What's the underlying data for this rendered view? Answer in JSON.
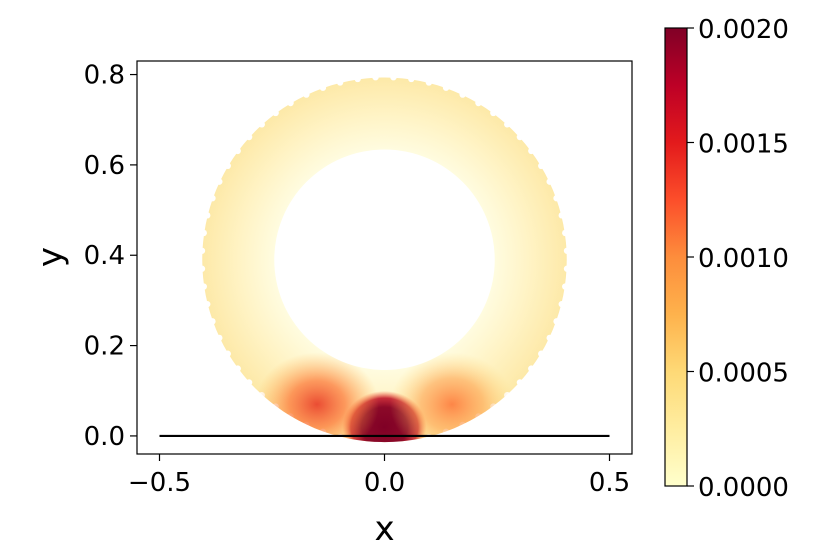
{
  "chart_data": {
    "type": "heatmap",
    "title": "",
    "xlabel": "x",
    "ylabel": "y",
    "xlim": [
      -0.55,
      0.55
    ],
    "ylim": [
      -0.04,
      0.83
    ],
    "x_ticks": [
      -0.5,
      0.0,
      0.5
    ],
    "x_tick_labels": [
      "−0.5",
      "0.0",
      "0.5"
    ],
    "y_ticks": [
      0.0,
      0.2,
      0.4,
      0.6,
      0.8
    ],
    "y_tick_labels": [
      "0.0",
      "0.2",
      "0.4",
      "0.6",
      "0.8"
    ],
    "grid": false,
    "ring": {
      "center": [
        0.0,
        0.39
      ],
      "inner_radius": 0.245,
      "outer_radius": 0.405
    },
    "baseline": {
      "x": [
        -0.5,
        0.5
      ],
      "y": 0.0
    },
    "hotspots": [
      {
        "x": 0.0,
        "y": 0.02,
        "value": 0.002
      },
      {
        "x": -0.15,
        "y": 0.07,
        "value": 0.0012
      },
      {
        "x": 0.15,
        "y": 0.07,
        "value": 0.0009
      }
    ],
    "colorbar": {
      "colormap": "YlOrRd",
      "range": [
        0.0,
        0.002
      ],
      "ticks": [
        0.0,
        0.0005,
        0.001,
        0.0015,
        0.002
      ],
      "tick_labels": [
        "0.0000",
        "0.0005",
        "0.0010",
        "0.0015",
        "0.0020"
      ],
      "colors": [
        "#ffffcc",
        "#ffeda0",
        "#fed976",
        "#feb24c",
        "#fd8d3c",
        "#fc4e2a",
        "#e31a1c",
        "#bd0026",
        "#800026"
      ]
    }
  }
}
